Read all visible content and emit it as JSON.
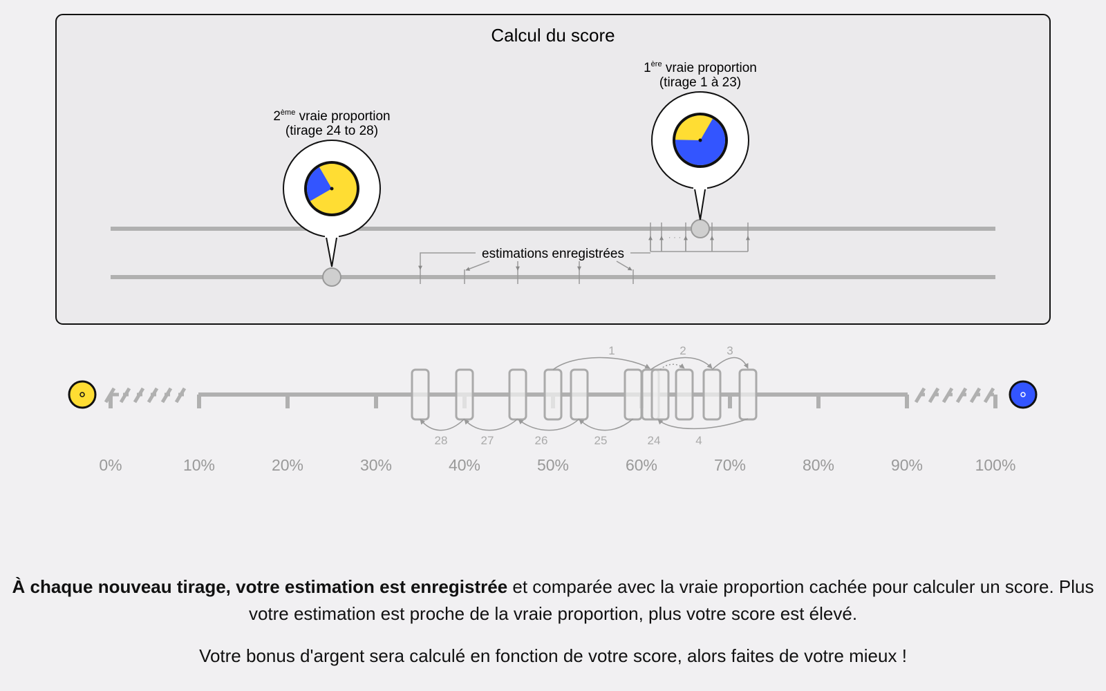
{
  "panel": {
    "title": "Calcul du score",
    "estimations_label": "estimations enregistrées"
  },
  "bubbles": {
    "first": {
      "ordinal_number": "1",
      "ordinal_suffix": "ère",
      "label": "vraie proportion",
      "range": "(tirage 1 à 23)",
      "blue_fraction": 0.67
    },
    "second": {
      "ordinal_number": "2",
      "ordinal_suffix": "ème",
      "label": "vraie proportion",
      "range": "(tirage 24 to 28)",
      "blue_fraction": 0.25
    }
  },
  "scale": {
    "ticks": [
      "0%",
      "10%",
      "20%",
      "30%",
      "40%",
      "50%",
      "60%",
      "70%",
      "80%",
      "90%",
      "100%"
    ],
    "top_numbers": [
      "1",
      "2",
      "3"
    ],
    "bottom_numbers": [
      "28",
      "27",
      "26",
      "25",
      "24",
      "4"
    ],
    "left_icon": "yellow-marble-icon",
    "right_icon": "blue-marble-icon"
  },
  "text": {
    "p1_bold": "À chaque nouveau tirage, votre estimation est enregistrée",
    "p1_rest": " et comparée avec la vraie proportion cachée pour calculer un score. Plus votre estimation est proche de la vraie proportion, plus votre score est élevé.",
    "p2": "Votre bonus d'argent sera calculé en fonction de votre score, alors faites de votre mieux !"
  },
  "colors": {
    "blue": "#3355ff",
    "yellow": "#ffdd33",
    "gray_line": "#b0b0b0",
    "panel_bg": "#ebeaec"
  }
}
